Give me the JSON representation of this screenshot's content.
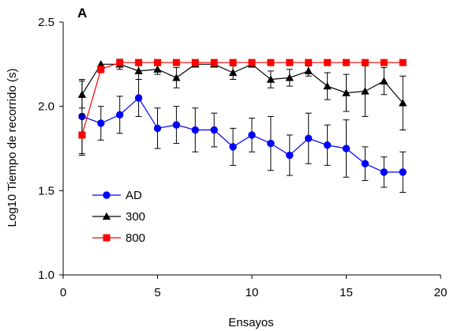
{
  "chart_data": {
    "type": "line",
    "panel_label": "A",
    "title": "",
    "xlabel": "Ensayos",
    "ylabel": "Log10 Tiempo de recorrido (s)",
    "xlim": [
      0,
      20
    ],
    "ylim": [
      1.0,
      2.5
    ],
    "xticks": [
      0,
      5,
      10,
      15,
      20
    ],
    "yticks": [
      1.0,
      1.5,
      2.0,
      2.5
    ],
    "xtick_labels": [
      "0",
      "5",
      "10",
      "15",
      "20"
    ],
    "ytick_labels": [
      "1.0",
      "1.5",
      "2.0",
      "2.5"
    ],
    "grid": false,
    "legend_position": "lower-left",
    "series": [
      {
        "name": "AD",
        "color": "#0000ff",
        "marker": "circle",
        "x": [
          1,
          2,
          3,
          4,
          5,
          6,
          7,
          8,
          9,
          10,
          11,
          12,
          13,
          14,
          15,
          16,
          17,
          18
        ],
        "y": [
          1.94,
          1.9,
          1.95,
          2.05,
          1.87,
          1.89,
          1.86,
          1.86,
          1.76,
          1.83,
          1.78,
          1.71,
          1.81,
          1.77,
          1.75,
          1.66,
          1.61,
          1.61
        ],
        "err": [
          0.22,
          0.1,
          0.11,
          0.11,
          0.12,
          0.11,
          0.13,
          0.1,
          0.11,
          0.1,
          0.16,
          0.12,
          0.15,
          0.12,
          0.17,
          0.1,
          0.09,
          0.12
        ]
      },
      {
        "name": "300",
        "color": "#000000",
        "marker": "triangle",
        "x": [
          1,
          2,
          3,
          4,
          5,
          6,
          7,
          8,
          9,
          10,
          11,
          12,
          13,
          14,
          15,
          16,
          17,
          18
        ],
        "y": [
          2.07,
          2.25,
          2.25,
          2.21,
          2.22,
          2.17,
          2.25,
          2.25,
          2.2,
          2.25,
          2.16,
          2.17,
          2.21,
          2.12,
          2.08,
          2.09,
          2.15,
          2.02
        ],
        "err": [
          0.08,
          0.0,
          0.03,
          0.05,
          0.03,
          0.06,
          0.0,
          0.0,
          0.04,
          0.0,
          0.05,
          0.05,
          0.03,
          0.08,
          0.11,
          0.15,
          0.08,
          0.16
        ]
      },
      {
        "name": "800",
        "color": "#ff0000",
        "marker": "square",
        "x": [
          1,
          2,
          3,
          4,
          5,
          6,
          7,
          8,
          9,
          10,
          11,
          12,
          13,
          14,
          15,
          16,
          17,
          18
        ],
        "y": [
          1.83,
          2.22,
          2.26,
          2.26,
          2.26,
          2.26,
          2.26,
          2.26,
          2.26,
          2.26,
          2.26,
          2.26,
          2.26,
          2.26,
          2.26,
          2.26,
          2.26,
          2.26
        ],
        "err": [
          0.12,
          0.02,
          0,
          0,
          0,
          0,
          0,
          0,
          0,
          0,
          0,
          0,
          0,
          0,
          0,
          0,
          0,
          0
        ]
      }
    ]
  }
}
